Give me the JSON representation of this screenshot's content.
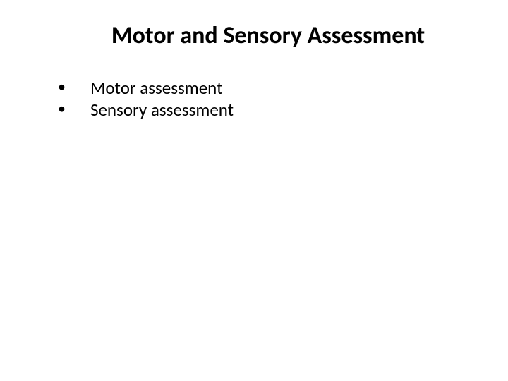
{
  "slide": {
    "title": "Motor and Sensory Assessment",
    "title_fontsize": 34,
    "title_fontweight": 700,
    "bullets": [
      {
        "marker": "•",
        "text": "Motor assessment"
      },
      {
        "marker": "•",
        "text": "Sensory assessment"
      }
    ],
    "body_fontsize": 25,
    "background_color": "#ffffff",
    "text_color": "#000000",
    "font_family": "Calibri, Arial, sans-serif"
  }
}
